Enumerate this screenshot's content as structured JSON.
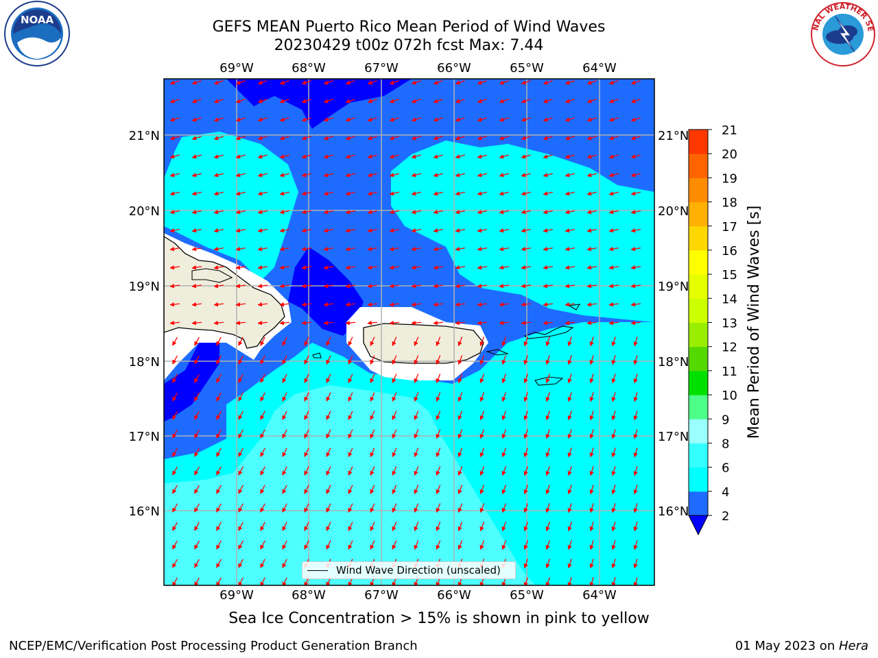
{
  "header": {
    "title": "GEFS MEAN Puerto Rico Mean Period of Wind Waves",
    "subtitle": "20230429 t00z 072h fcst   Max: 7.44"
  },
  "logos": {
    "left": "NOAA",
    "right": "NATIONAL WEATHER SERVICE"
  },
  "map": {
    "lon_labels": [
      "69°W",
      "68°W",
      "67°W",
      "66°W",
      "65°W",
      "64°W"
    ],
    "lat_labels": [
      "21°N",
      "20°N",
      "19°N",
      "18°N",
      "17°N",
      "16°N"
    ],
    "legend_label": "Wind Wave Direction (unscaled)"
  },
  "colorbar": {
    "label": "Mean Period of Wind Waves [s]",
    "ticks": [
      "2",
      "4",
      "6",
      "8",
      "9",
      "10",
      "11",
      "12",
      "13",
      "14",
      "15",
      "16",
      "17",
      "18",
      "19",
      "20",
      "21"
    ],
    "colors": [
      "#1e6cff",
      "#00ffff",
      "#33ffff",
      "#99ffff",
      "#4dff88",
      "#00e000",
      "#55d800",
      "#99ee00",
      "#ccff00",
      "#e6ff00",
      "#ffff00",
      "#ffd700",
      "#ffb000",
      "#ff8c00",
      "#ff6400",
      "#ff3800",
      "#ff0000"
    ],
    "under_color": "#0000ff"
  },
  "notes": {
    "ice": "Sea Ice Concentration > 15% is shown in pink to yellow"
  },
  "footer": {
    "left": "NCEP/EMC/Verification Post Processing Product Generation Branch",
    "date": "01 May 2023 on ",
    "host": "Hera"
  }
}
